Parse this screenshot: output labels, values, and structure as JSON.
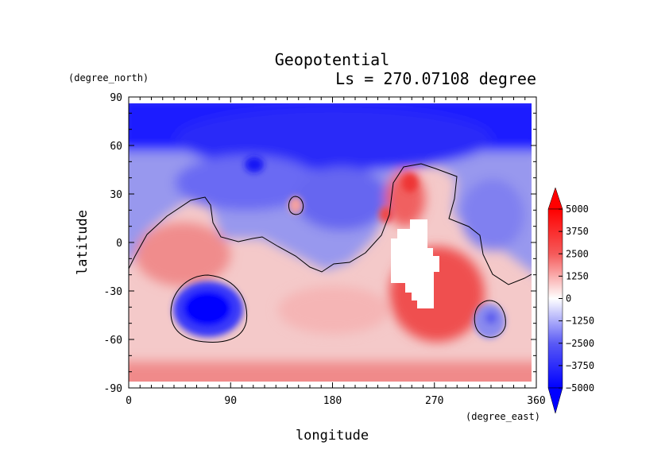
{
  "chart_data": {
    "type": "heatmap",
    "title": "Geopotential",
    "subtitle": "Ls = 270.07108 degree",
    "xlabel": "longitude",
    "ylabel": "latitude",
    "xunit": "(degree_east)",
    "yunit": "(degree_north)",
    "xlim": [
      0,
      360
    ],
    "ylim": [
      -90,
      90
    ],
    "x_ticks": [
      0,
      90,
      180,
      270,
      360
    ],
    "y_ticks": [
      -90,
      -60,
      -30,
      0,
      30,
      60,
      90
    ],
    "x_tick_labels": [
      "0",
      "90",
      "180",
      "270",
      "360"
    ],
    "y_tick_labels": [
      "-90",
      "-60",
      "-30",
      "0",
      "30",
      "60",
      "90"
    ],
    "data_lat_range": [
      -87,
      86
    ],
    "colorbar": {
      "min": -5000,
      "max": 5000,
      "tick_values": [
        5000,
        3750,
        2500,
        1250,
        0,
        -1250,
        -2500,
        -3750,
        -5000
      ],
      "tick_labels": [
        "5000",
        "3750",
        "2500",
        "1250",
        "0",
        "−1250",
        "−2500",
        "−3750",
        "−5000"
      ],
      "low_color": "#0000ff",
      "mid_color": "#ffffff",
      "high_color": "#ff0000"
    },
    "field_features": [
      {
        "name": "southern-mid-latitudes",
        "lon": [
          0,
          360
        ],
        "lat": [
          -80,
          -30
        ],
        "value": 1500
      },
      {
        "name": "northern-polar-cap",
        "lon": [
          0,
          360
        ],
        "lat": [
          60,
          86
        ],
        "value": -4500
      },
      {
        "name": "northern-low-basin",
        "lon": [
          110,
          130
        ],
        "lat": [
          40,
          55
        ],
        "value": -3500
      },
      {
        "name": "southern-basin-west",
        "lon": [
          55,
          85
        ],
        "lat": [
          -55,
          -30
        ],
        "value": -4800
      },
      {
        "name": "southern-basin-east",
        "lon": [
          310,
          330
        ],
        "lat": [
          -55,
          -40
        ],
        "value": -2200
      },
      {
        "name": "tharsis-high",
        "lon": [
          225,
          285
        ],
        "lat": [
          -45,
          45
        ],
        "value": 3800
      },
      {
        "name": "small-highland-patch",
        "lon": [
          140,
          155
        ],
        "lat": [
          15,
          25
        ],
        "value": 1500
      }
    ],
    "missing_region_lon": [
      230,
      270
    ],
    "missing_region_lat": [
      -45,
      15
    ]
  }
}
